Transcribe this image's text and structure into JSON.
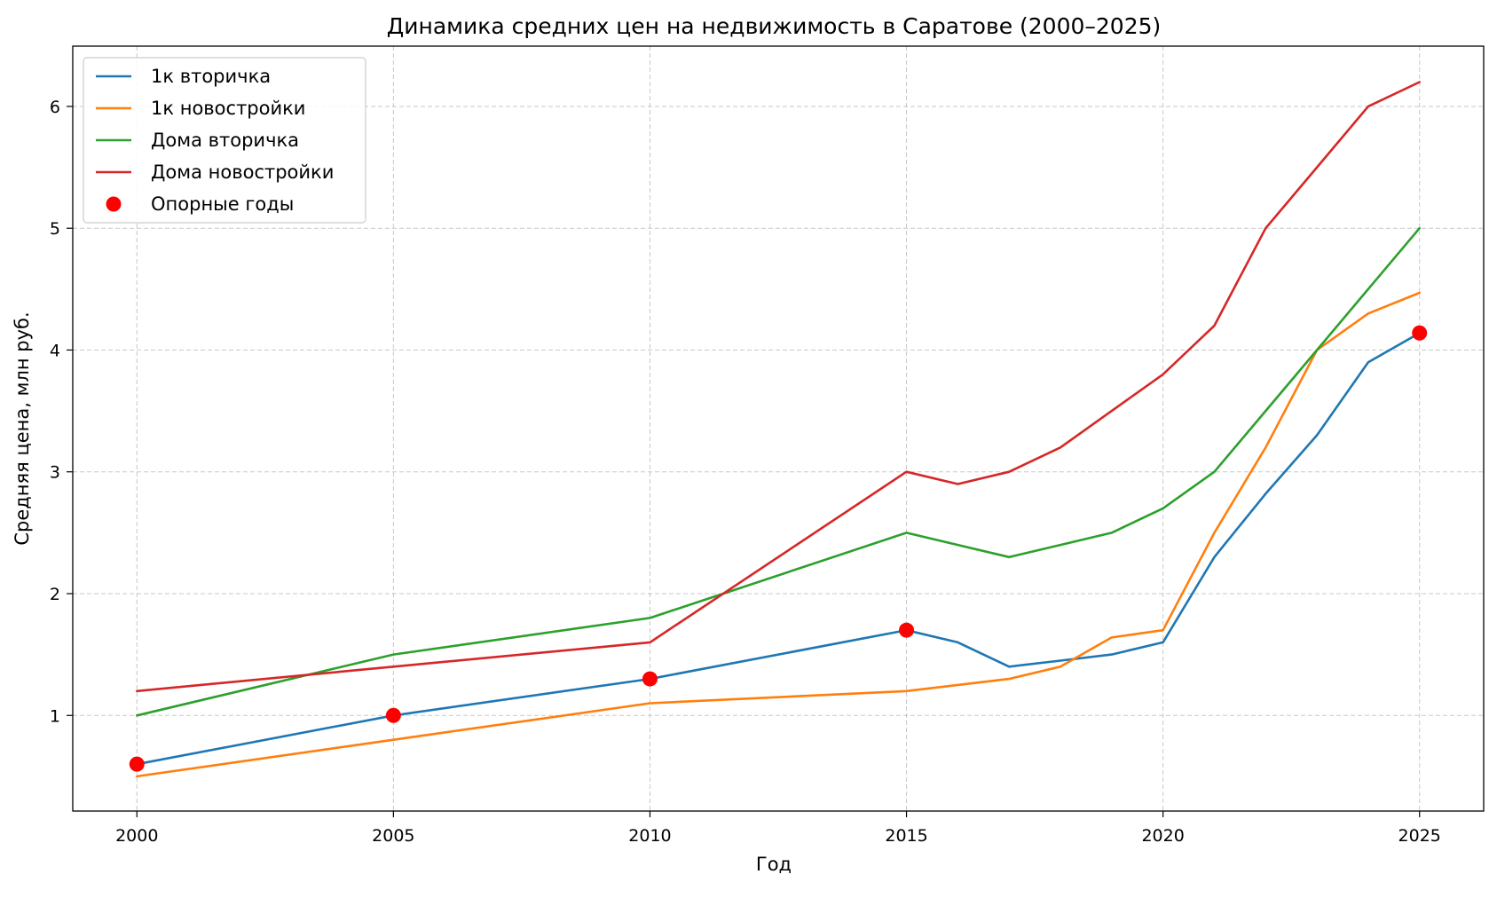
{
  "chart_data": {
    "type": "line",
    "title": "Динамика средних цен на недвижимость в Саратове (2000–2025)",
    "xlabel": "Год",
    "ylabel": "Средняя цена, млн руб.",
    "xlim": [
      1998.75,
      2026.25
    ],
    "ylim": [
      0.215,
      6.495
    ],
    "xticks": [
      2000,
      2005,
      2010,
      2015,
      2020,
      2025
    ],
    "yticks": [
      1,
      2,
      3,
      4,
      5,
      6
    ],
    "grid": true,
    "legend_position": "top-left",
    "x": [
      2000,
      2005,
      2010,
      2015,
      2016,
      2017,
      2018,
      2019,
      2020,
      2021,
      2022,
      2023,
      2024,
      2025
    ],
    "series": [
      {
        "name": "1к вторичка",
        "color": "#1f77b4",
        "values": [
          0.6,
          1.0,
          1.3,
          1.7,
          1.6,
          1.4,
          1.45,
          1.5,
          1.6,
          2.3,
          2.82,
          3.3,
          3.9,
          4.14
        ]
      },
      {
        "name": "1к новостройки",
        "color": "#ff7f0e",
        "values": [
          0.5,
          0.8,
          1.1,
          1.2,
          1.25,
          1.3,
          1.4,
          1.64,
          1.7,
          2.5,
          3.2,
          4.0,
          4.3,
          4.47
        ]
      },
      {
        "name": "Дома вторичка",
        "color": "#2ca02c",
        "values": [
          1.0,
          1.5,
          1.8,
          2.5,
          2.4,
          2.3,
          2.4,
          2.5,
          2.7,
          3.0,
          3.5,
          4.0,
          4.5,
          5.0
        ]
      },
      {
        "name": "Дома новостройки",
        "color": "#d62728",
        "values": [
          1.2,
          1.4,
          1.6,
          3.0,
          2.9,
          3.0,
          3.2,
          3.5,
          3.8,
          4.2,
          5.0,
          5.5,
          6.0,
          6.2
        ]
      }
    ],
    "markers": {
      "name": "Опорные годы",
      "color": "#ff0000",
      "x": [
        2000,
        2005,
        2010,
        2015,
        2025
      ],
      "y": [
        0.6,
        1.0,
        1.3,
        1.7,
        4.14
      ]
    }
  }
}
